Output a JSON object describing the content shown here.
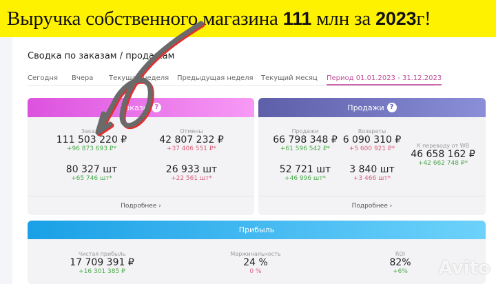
{
  "banner": {
    "t1": "Выручка собственного магазина ",
    "t2": "111",
    "t3": " млн за ",
    "t4": "2023",
    "t5": "г!"
  },
  "summary": {
    "title": "Сводка по заказам / продажам"
  },
  "tabs": [
    "Сегодня",
    "Вчера",
    "Текущая неделя",
    "Предыдущая неделя",
    "Текущий месяц",
    "Период 01.01.2023 - 31.12.2023"
  ],
  "active_tab": "Период 01.01.2023 - 31.12.2023",
  "orders": {
    "header": "Заказы",
    "help": "?",
    "orders_label": "Заказы",
    "orders_value": "111 503 220 ₽",
    "orders_delta": "+96 873 693 ₽*",
    "orders_qty": "80 327 шт",
    "orders_qty_delta": "+65 746 шт*",
    "cancel_label": "Отмены",
    "cancel_value": "42 807 232 ₽",
    "cancel_delta": "+37 406 551 ₽*",
    "cancel_qty": "26 933 шт",
    "cancel_qty_delta": "+22 561 шт*",
    "more": "Подробнее ›",
    "color": "#e15ae0"
  },
  "sales": {
    "header": "Продажи",
    "help": "?",
    "sales_label": "Продажи",
    "sales_value": "66 798 348 ₽",
    "sales_delta": "+61 596 542 ₽*",
    "sales_qty": "52 721 шт",
    "sales_qty_delta": "+46 996 шт*",
    "returns_label": "Возвраты",
    "returns_value": "6 090 310 ₽",
    "returns_delta": "+5 600 921 ₽*",
    "returns_qty": "3 840 шт",
    "returns_qty_delta": "+3 466 шт*",
    "transfer_label": "К переводу от WB",
    "transfer_value": "46 658 162 ₽",
    "transfer_delta": "+42 662 748 ₽*",
    "more": "Подробнее ›",
    "color": "#6a6cb8"
  },
  "profit": {
    "header": "Прибыль",
    "net_label": "Чистая прибыль",
    "net_value": "17 709 391 ₽",
    "net_delta": "+16 301 385 ₽",
    "margin_label": "Маржинальность",
    "margin_value": "24 %",
    "margin_delta": "0 %",
    "roi_label": "ROI",
    "roi_value": "82%",
    "roi_delta": "+6%",
    "color": "#1ea6e8"
  },
  "watermark": "Avito"
}
